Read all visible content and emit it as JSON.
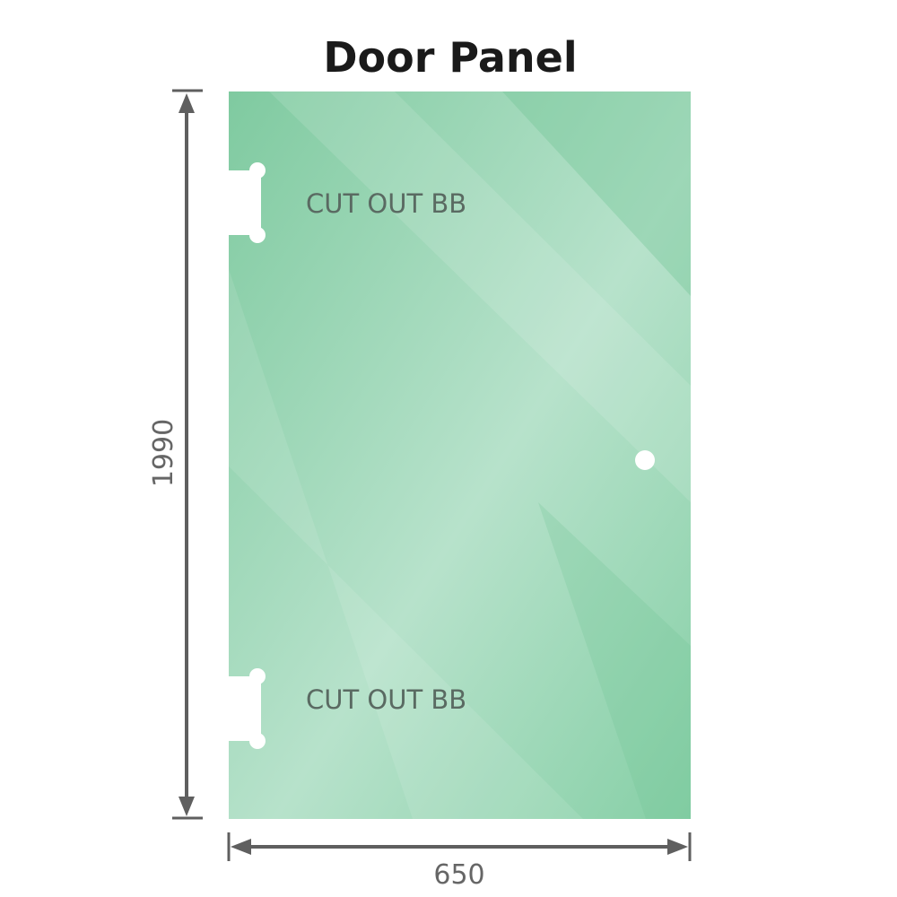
{
  "title": "Door Panel",
  "panel": {
    "color": "#86cfa6",
    "cutouts": [
      {
        "label": "CUT OUT BB"
      },
      {
        "label": "CUT OUT BB"
      }
    ]
  },
  "dimensions": {
    "height": "1990",
    "width": "650",
    "line_color": "#5f5f5f"
  }
}
